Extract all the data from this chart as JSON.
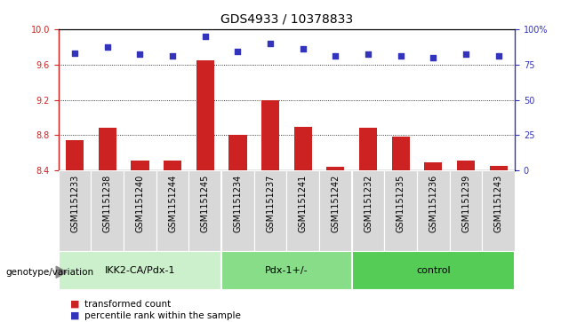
{
  "title": "GDS4933 / 10378833",
  "samples": [
    "GSM1151233",
    "GSM1151238",
    "GSM1151240",
    "GSM1151244",
    "GSM1151245",
    "GSM1151234",
    "GSM1151237",
    "GSM1151241",
    "GSM1151242",
    "GSM1151232",
    "GSM1151235",
    "GSM1151236",
    "GSM1151239",
    "GSM1151243"
  ],
  "bar_values": [
    8.74,
    8.88,
    8.51,
    8.51,
    9.65,
    8.8,
    9.2,
    8.89,
    8.44,
    8.88,
    8.78,
    8.49,
    8.51,
    8.45
  ],
  "dot_values": [
    83,
    87,
    82,
    81,
    95,
    84,
    90,
    86,
    81,
    82,
    81,
    80,
    82,
    81
  ],
  "ylim_left": [
    8.4,
    10.0
  ],
  "ylim_right": [
    0,
    100
  ],
  "yticks_left": [
    8.4,
    8.8,
    9.2,
    9.6,
    10.0
  ],
  "yticks_right": [
    0,
    25,
    50,
    75,
    100
  ],
  "groups": [
    {
      "label": "IKK2-CA/Pdx-1",
      "start": 0,
      "end": 5
    },
    {
      "label": "Pdx-1+/-",
      "start": 5,
      "end": 9
    },
    {
      "label": "control",
      "start": 9,
      "end": 14
    }
  ],
  "bar_color": "#cc2222",
  "dot_color": "#3333bb",
  "bar_width": 0.55,
  "bg_plot": "#ffffff",
  "bg_xlabels": "#d8d8d8",
  "group_color_1": "#ccf0cc",
  "group_color_2": "#88dd88",
  "group_color_3": "#55cc55",
  "genotype_label": "genotype/variation",
  "legend_bar": "transformed count",
  "legend_dot": "percentile rank within the sample",
  "ylabel_left_color": "#cc2222",
  "ylabel_right_color": "#3333bb",
  "title_fontsize": 10,
  "tick_fontsize": 7,
  "group_label_fontsize": 8
}
